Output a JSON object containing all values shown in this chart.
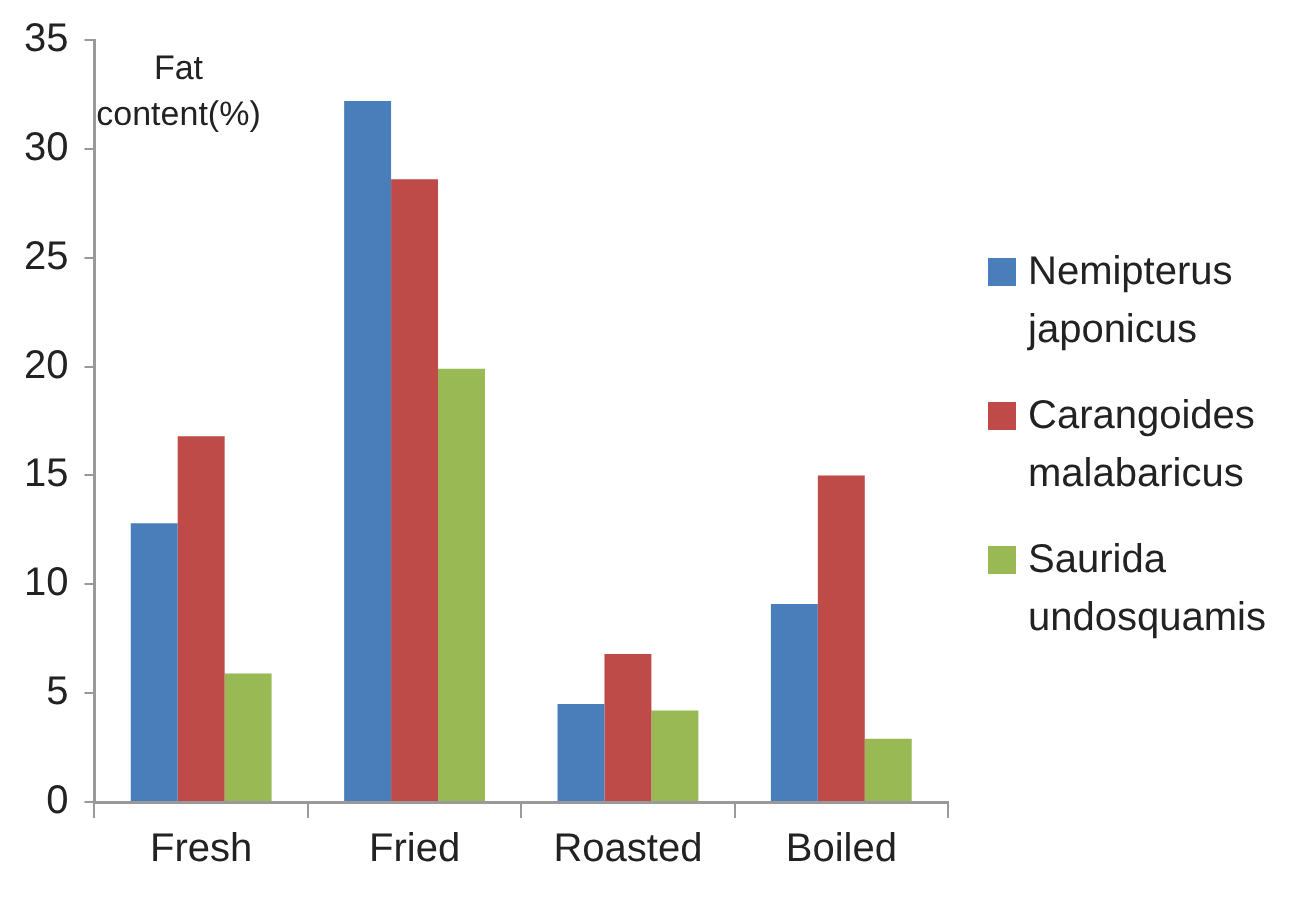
{
  "chart_data": {
    "type": "bar",
    "ylabel": "Fat content(%)",
    "categories": [
      "Fresh",
      "Fried",
      "Roasted",
      "Boiled"
    ],
    "series": [
      {
        "name": "Nemipterus japonicus",
        "color": "#4a7ebb",
        "values": [
          12.8,
          32.2,
          4.5,
          9.1
        ]
      },
      {
        "name": "Carangoides malabaricus",
        "color": "#be4b48",
        "values": [
          16.8,
          28.6,
          6.8,
          15.0
        ]
      },
      {
        "name": "Saurida undosquamis",
        "color": "#98b954",
        "values": [
          5.9,
          19.9,
          4.2,
          2.9
        ]
      }
    ],
    "ylim": [
      0,
      35
    ],
    "yticks": [
      0,
      5,
      10,
      15,
      20,
      25,
      30,
      35
    ],
    "grid": false,
    "legend": "right"
  }
}
